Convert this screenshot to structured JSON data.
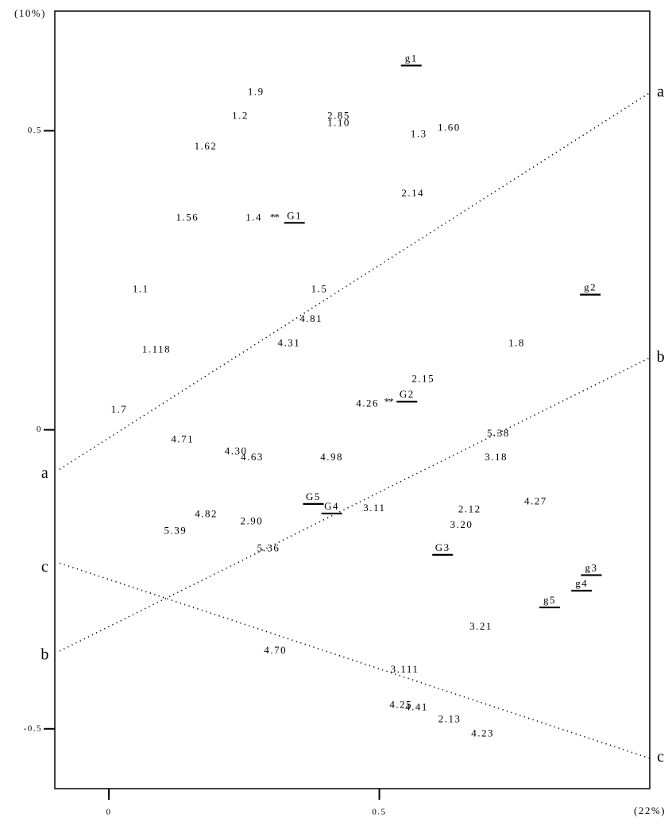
{
  "chart_data": {
    "type": "scatter",
    "ylabel": "(10%)",
    "xlabel": "(22%)",
    "xlim": [
      -0.1,
      1.0
    ],
    "ylim": [
      -0.6,
      0.7
    ],
    "xticks": [
      0,
      0.5
    ],
    "yticks": [
      -0.5,
      0,
      0.5
    ],
    "color": "#000000",
    "labels": [
      "1.9",
      "1.2",
      "2.85",
      "1.10",
      "1.3",
      "1.60",
      "1.62",
      "2.14",
      "1.56",
      "1.4",
      "1.1",
      "1.5",
      "4.81",
      "4.31",
      "1.118",
      "1.8",
      "2.15",
      "4.26",
      "1.7",
      "4.71",
      "4.30",
      "4.63",
      "4.98",
      "5.38",
      "3.18",
      "3.11",
      "2.12",
      "4.27",
      "4.82",
      "2.90",
      "3.20",
      "5.39",
      "5.36",
      "3.21",
      "4.70",
      "3.111",
      "4.25",
      "4.41",
      "2.13",
      "4.23"
    ],
    "x": [
      0.272,
      0.243,
      0.425,
      0.425,
      0.573,
      0.629,
      0.179,
      0.562,
      0.145,
      0.268,
      0.059,
      0.389,
      0.374,
      0.333,
      0.088,
      0.754,
      0.581,
      0.478,
      0.019,
      0.136,
      0.235,
      0.265,
      0.412,
      0.72,
      0.716,
      0.491,
      0.667,
      0.789,
      0.18,
      0.264,
      0.652,
      0.123,
      0.295,
      0.688,
      0.308,
      0.547,
      0.54,
      0.569,
      0.63,
      0.691
    ],
    "y": [
      0.564,
      0.524,
      0.524,
      0.512,
      0.493,
      0.504,
      0.473,
      0.394,
      0.354,
      0.354,
      0.234,
      0.234,
      0.184,
      0.144,
      0.133,
      0.144,
      0.084,
      0.043,
      0.033,
      -0.017,
      -0.037,
      -0.047,
      -0.047,
      -0.007,
      -0.047,
      -0.132,
      -0.134,
      -0.121,
      -0.142,
      -0.154,
      -0.16,
      -0.17,
      -0.199,
      -0.33,
      -0.37,
      -0.402,
      -0.461,
      -0.465,
      -0.485,
      -0.509
    ],
    "groups": {
      "labels": [
        "G1",
        "G2",
        "G3",
        "G4",
        "G5",
        "g1",
        "g2",
        "g3",
        "g4",
        "g5"
      ],
      "x": [
        0.343,
        0.551,
        0.617,
        0.412,
        0.378,
        0.559,
        0.89,
        0.892,
        0.874,
        0.815
      ],
      "y": [
        0.346,
        0.047,
        -0.209,
        -0.14,
        -0.124,
        0.609,
        0.226,
        -0.243,
        -0.269,
        -0.297
      ]
    },
    "stars": {
      "symbol": "**",
      "x": [
        0.306,
        0.517
      ],
      "y": [
        0.354,
        0.045
      ]
    },
    "lines": [
      {
        "name": "a",
        "x": [
          -0.091,
          0.999
        ],
        "y": [
          -0.066,
          0.563
        ]
      },
      {
        "name": "b",
        "x": [
          -0.091,
          0.999
        ],
        "y": [
          -0.37,
          0.12
        ]
      },
      {
        "name": "c",
        "x": [
          -0.091,
          0.999
        ],
        "y": [
          -0.223,
          -0.549
        ]
      }
    ]
  }
}
